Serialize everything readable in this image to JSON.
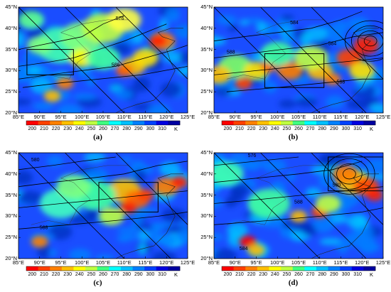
{
  "lat_labels": [
    "45°N",
    "40°N",
    "35°N",
    "30°N",
    "25°N",
    "20°N"
  ],
  "lon_labels": [
    "85°E",
    "90°E",
    "95°E",
    "100°E",
    "105°E",
    "110°E",
    "115°E",
    "120°E",
    "125°E"
  ],
  "colorbar": {
    "ticks": [
      "200",
      "210",
      "220",
      "230",
      "240",
      "250",
      "260",
      "270",
      "280",
      "290",
      "300",
      "310"
    ],
    "unit": "K",
    "colors": [
      "#ff0000",
      "#ff4000",
      "#ff8000",
      "#ffbf00",
      "#ffff00",
      "#bfff40",
      "#40ff80",
      "#00ffff",
      "#00bfff",
      "#0080ff",
      "#0040ff",
      "#0000e0",
      "#0000a0"
    ]
  },
  "panels": [
    {
      "label": "(a)",
      "contour_labels": [
        "576",
        "586"
      ],
      "box": [
        87,
        35,
        98,
        29
      ]
    },
    {
      "label": "(b)",
      "contour_labels": [
        "584",
        "588",
        "584",
        "588"
      ],
      "box": [
        97,
        34,
        111,
        26
      ]
    },
    {
      "label": "(c)",
      "contour_labels": [
        "580",
        "588"
      ],
      "box": [
        104,
        38,
        118,
        31
      ]
    },
    {
      "label": "(d)",
      "contour_labels": [
        "576",
        "580",
        "588",
        "584"
      ],
      "box": [
        112,
        44,
        125,
        36
      ]
    }
  ]
}
